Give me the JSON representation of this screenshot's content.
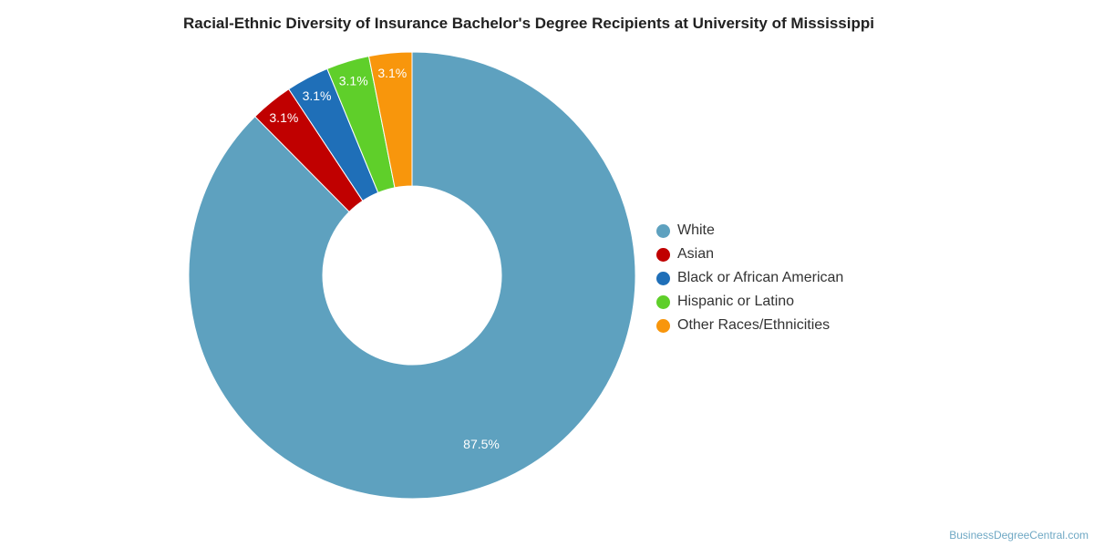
{
  "chart_data": {
    "type": "pie",
    "title": "Racial-Ethnic Diversity of Insurance Bachelor's Degree Recipients at University of Mississippi",
    "donut": true,
    "legend_position": "right",
    "series": [
      {
        "name": "White",
        "value": 87.5,
        "label": "87.5%",
        "color": "#5ea1bf"
      },
      {
        "name": "Asian",
        "value": 3.1,
        "label": "3.1%",
        "color": "#c00000"
      },
      {
        "name": "Black or African American",
        "value": 3.1,
        "label": "3.1%",
        "color": "#1f6fb8"
      },
      {
        "name": "Hispanic or Latino",
        "value": 3.1,
        "label": "3.1%",
        "color": "#5fcf2a"
      },
      {
        "name": "Other Races/Ethnicities",
        "value": 3.1,
        "label": "3.1%",
        "color": "#f8960c"
      }
    ]
  },
  "watermark": "BusinessDegreeCentral.com"
}
